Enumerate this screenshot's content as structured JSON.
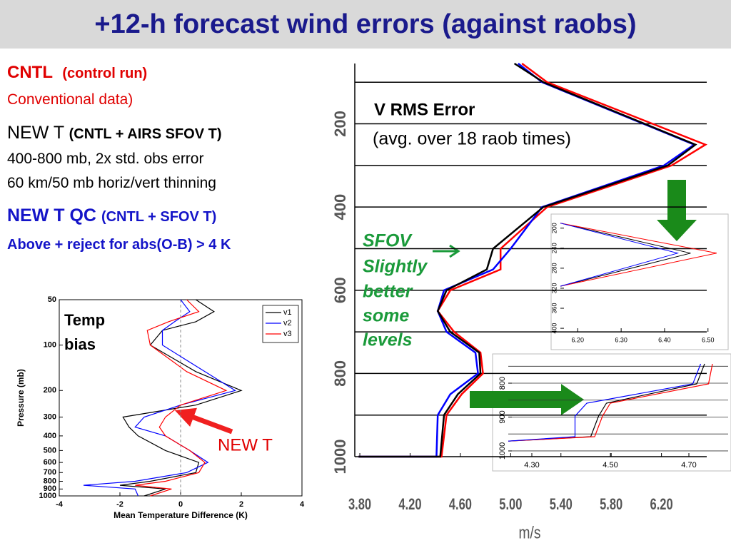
{
  "title": "+12-h forecast wind errors (against raobs)",
  "notes": {
    "cntl": "CNTL",
    "cntl_desc": "(control run)",
    "cntl_line2": "Conventional data)",
    "newt": "NEW T",
    "newt_desc": "(CNTL + AIRS SFOV T)",
    "newt_line2": "400-800 mb, 2x std. obs error",
    "newt_line3": "60 km/50 mb horiz/vert thinning",
    "newtqc": "NEW T QC",
    "newtqc_desc": "(CNTL + SFOV T)",
    "newtqc_line2": "Above + reject for abs(O-B) > 4 K"
  },
  "chart_data": [
    {
      "type": "line",
      "xlabel": "Mean Temperature Difference (K)",
      "ylabel": "Pressure (mb)",
      "y": [
        50,
        60,
        70,
        80,
        100,
        150,
        200,
        250,
        300,
        350,
        400,
        500,
        600,
        700,
        800,
        850,
        900,
        1000
      ],
      "series": [
        {
          "name": "v1",
          "color": "#000000",
          "values": [
            0.5,
            1.1,
            0.5,
            -0.6,
            -1.0,
            0.5,
            2.0,
            0.5,
            -1.9,
            -1.7,
            -1.4,
            -0.5,
            0.6,
            0.5,
            -1.0,
            -2.0,
            -0.5,
            -1.2
          ]
        },
        {
          "name": "v2",
          "color": "#0000ff",
          "values": [
            0.0,
            0.3,
            -0.2,
            -0.6,
            -0.6,
            0.8,
            1.8,
            0.0,
            -1.2,
            -1.5,
            -0.5,
            0.3,
            0.9,
            0.2,
            -1.5,
            -3.2,
            -1.5,
            -1.4
          ]
        },
        {
          "name": "v3",
          "color": "#ff0000",
          "values": [
            0.2,
            0.6,
            -0.4,
            -1.1,
            -1.0,
            0.2,
            1.5,
            0.0,
            -0.5,
            -0.7,
            -0.5,
            0.3,
            0.8,
            0.6,
            -0.5,
            -1.5,
            -0.3,
            -1.0
          ]
        }
      ],
      "xlim": [
        -4,
        4
      ],
      "xticks": [
        -4,
        -2,
        0,
        2,
        4
      ],
      "ylim": [
        1000,
        50
      ],
      "ylog": true,
      "yticks": [
        50,
        100,
        200,
        300,
        400,
        500,
        600,
        700,
        800,
        900,
        1000
      ],
      "reference_x": 0,
      "legend": "upper right",
      "annotations": [
        "Temp",
        "bias",
        "NEW T"
      ]
    },
    {
      "type": "line",
      "xlabel": "m/s",
      "annotations": [
        "V RMS Error",
        "(avg. over 18 raob times)",
        "SFOV",
        "Slightly",
        "better",
        "some",
        "levels"
      ],
      "y": [
        55,
        100,
        250,
        300,
        400,
        500,
        550,
        600,
        650,
        700,
        750,
        800,
        850,
        900,
        1000,
        1000
      ],
      "series": [
        {
          "color": "#ff0000",
          "values": [
            5.09,
            5.29,
            6.55,
            6.28,
            5.29,
            4.92,
            4.92,
            4.52,
            4.42,
            4.55,
            4.76,
            4.78,
            4.61,
            4.49,
            4.45,
            3.79
          ]
        },
        {
          "color": "#0000ff",
          "values": [
            5.06,
            5.25,
            6.46,
            6.22,
            5.25,
            5.0,
            4.86,
            4.47,
            4.42,
            4.49,
            4.72,
            4.74,
            4.52,
            4.42,
            4.41,
            3.79
          ]
        },
        {
          "color": "#000000",
          "values": [
            5.03,
            5.26,
            6.47,
            6.25,
            5.26,
            4.86,
            4.81,
            4.49,
            4.42,
            4.52,
            4.75,
            4.76,
            4.58,
            4.47,
            4.44,
            3.79
          ]
        }
      ],
      "xlim": [
        3.76,
        6.56
      ],
      "xticks": [
        {
          "value": 3.8,
          "label": "3.80"
        },
        {
          "value": 4.2,
          "label": "4.20"
        },
        {
          "value": 4.6,
          "label": "4.60"
        },
        {
          "value": 5.0,
          "label": "5.00"
        },
        {
          "value": 5.4,
          "label": "5.40"
        },
        {
          "value": 5.8,
          "label": "5.80"
        },
        {
          "value": 6.2,
          "label": "6.20"
        }
      ],
      "ylim": [
        1000,
        55
      ],
      "yticks": [
        200,
        400,
        600,
        800,
        1000
      ],
      "ygrid": [
        100,
        200,
        300,
        400,
        500,
        600,
        700,
        800,
        900,
        1000
      ]
    },
    {
      "type": "line",
      "y": [
        190,
        250,
        316
      ],
      "series": [
        {
          "color": "#000000",
          "values": [
            6.16,
            6.46,
            6.16
          ]
        },
        {
          "color": "#ff0000",
          "values": [
            6.16,
            6.52,
            6.16
          ]
        },
        {
          "color": "#0000ff",
          "values": [
            6.16,
            6.43,
            6.16
          ]
        }
      ],
      "xlim": [
        6.16,
        6.53
      ],
      "xticks": [
        {
          "value": 6.2,
          "label": "6.20"
        },
        {
          "value": 6.3,
          "label": "6.30"
        },
        {
          "value": 6.4,
          "label": "6.40"
        },
        {
          "value": 6.5,
          "label": "6.50"
        }
      ],
      "ylim": [
        407,
        179
      ],
      "yticks": [
        200,
        240,
        280,
        320,
        360,
        400
      ]
    },
    {
      "type": "line",
      "y": [
        743,
        802,
        859,
        897,
        958,
        971
      ],
      "series": [
        {
          "color": "#000000",
          "values": [
            4.74,
            4.72,
            4.49,
            4.47,
            4.45,
            4.24
          ]
        },
        {
          "color": "#ff0000",
          "values": [
            4.76,
            4.75,
            4.5,
            4.48,
            4.46,
            4.24
          ]
        },
        {
          "color": "#0000ff",
          "values": [
            4.73,
            4.71,
            4.44,
            4.41,
            4.41,
            4.24
          ]
        }
      ],
      "xlim": [
        4.24,
        4.8
      ],
      "xticks": [
        {
          "value": 4.3,
          "label": "4.30"
        },
        {
          "value": 4.5,
          "label": "4.50"
        },
        {
          "value": 4.7,
          "label": "4.70"
        }
      ],
      "ylim": [
        1017,
        722
      ],
      "yticks": [
        800,
        900,
        1000
      ],
      "ygrid": [
        750,
        800,
        850,
        900,
        950,
        1000
      ]
    }
  ]
}
